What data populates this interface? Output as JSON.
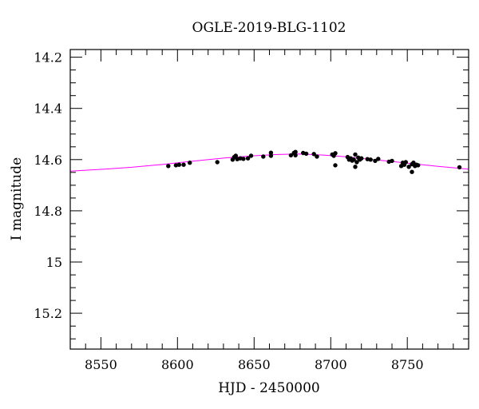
{
  "chart_data": {
    "type": "scatter",
    "title": "OGLE-2019-BLG-1102",
    "xlabel": "HJD - 2450000",
    "ylabel": "I magnitude",
    "xlim": [
      8530,
      8790
    ],
    "ylim": [
      15.34,
      14.17
    ],
    "y_inverted": true,
    "grid": false,
    "x_ticks": [
      {
        "value": 8550,
        "label": "8550"
      },
      {
        "value": 8600,
        "label": "8600"
      },
      {
        "value": 8650,
        "label": "8650"
      },
      {
        "value": 8700,
        "label": "8700"
      },
      {
        "value": 8750,
        "label": "8750"
      }
    ],
    "y_ticks": [
      {
        "value": 14.2,
        "label": "14.2"
      },
      {
        "value": 14.4,
        "label": "14.4"
      },
      {
        "value": 14.6,
        "label": "14.6"
      },
      {
        "value": 14.8,
        "label": "14.8"
      },
      {
        "value": 15.0,
        "label": "15"
      },
      {
        "value": 15.2,
        "label": "15.2"
      }
    ],
    "x_minor_step": 10,
    "y_minor_step": 0.05,
    "series": [
      {
        "kind": "points",
        "color": "#000000",
        "points": [
          [
            8594,
            14.625
          ],
          [
            8599,
            14.622
          ],
          [
            8601,
            14.62
          ],
          [
            8604,
            14.62
          ],
          [
            8608,
            14.612
          ],
          [
            8626,
            14.61
          ],
          [
            8636,
            14.6
          ],
          [
            8637,
            14.59
          ],
          [
            8638,
            14.585
          ],
          [
            8639,
            14.598
          ],
          [
            8641,
            14.595
          ],
          [
            8643,
            14.597
          ],
          [
            8646,
            14.595
          ],
          [
            8648,
            14.585
          ],
          [
            8656,
            14.588
          ],
          [
            8661,
            14.573
          ],
          [
            8661,
            14.585
          ],
          [
            8674,
            14.583
          ],
          [
            8676,
            14.574
          ],
          [
            8677,
            14.57
          ],
          [
            8677,
            14.583
          ],
          [
            8682,
            14.574
          ],
          [
            8684,
            14.577
          ],
          [
            8689,
            14.578
          ],
          [
            8691,
            14.588
          ],
          [
            8701,
            14.58
          ],
          [
            8702,
            14.585
          ],
          [
            8703,
            14.575
          ],
          [
            8703,
            14.622
          ],
          [
            8711,
            14.59
          ],
          [
            8712,
            14.6
          ],
          [
            8713,
            14.595
          ],
          [
            8714,
            14.604
          ],
          [
            8715,
            14.6
          ],
          [
            8716,
            14.58
          ],
          [
            8716,
            14.628
          ],
          [
            8717,
            14.61
          ],
          [
            8718,
            14.592
          ],
          [
            8719,
            14.6
          ],
          [
            8720,
            14.595
          ],
          [
            8724,
            14.598
          ],
          [
            8726,
            14.6
          ],
          [
            8729,
            14.605
          ],
          [
            8731,
            14.597
          ],
          [
            8738,
            14.608
          ],
          [
            8740,
            14.605
          ],
          [
            8746,
            14.625
          ],
          [
            8747,
            14.612
          ],
          [
            8748,
            14.62
          ],
          [
            8749,
            14.61
          ],
          [
            8751,
            14.628
          ],
          [
            8753,
            14.618
          ],
          [
            8753,
            14.648
          ],
          [
            8754,
            14.612
          ],
          [
            8755,
            14.625
          ],
          [
            8756,
            14.62
          ],
          [
            8757,
            14.622
          ],
          [
            8784,
            14.63
          ]
        ]
      },
      {
        "kind": "line",
        "color": "#ff00ff",
        "points": [
          [
            8530,
            14.645
          ],
          [
            8550,
            14.638
          ],
          [
            8570,
            14.63
          ],
          [
            8590,
            14.619
          ],
          [
            8610,
            14.606
          ],
          [
            8630,
            14.594
          ],
          [
            8650,
            14.585
          ],
          [
            8665,
            14.58
          ],
          [
            8680,
            14.578
          ],
          [
            8695,
            14.582
          ],
          [
            8710,
            14.589
          ],
          [
            8725,
            14.598
          ],
          [
            8740,
            14.607
          ],
          [
            8755,
            14.617
          ],
          [
            8770,
            14.626
          ],
          [
            8790,
            14.637
          ]
        ]
      }
    ]
  }
}
